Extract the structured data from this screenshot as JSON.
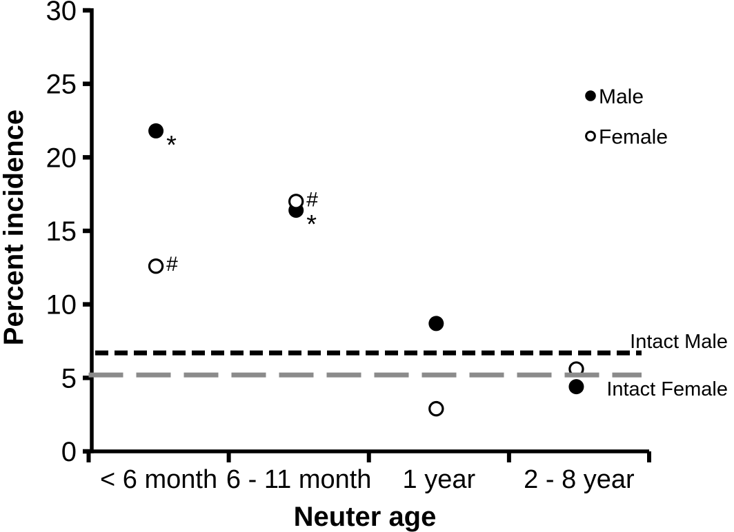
{
  "figure": {
    "background": "#ffffff"
  },
  "colors": {
    "point_fill": "#000000",
    "open_point_fill": "#ffffff",
    "point_outline": "#000000",
    "axis": "#000000",
    "intact_male_line": "#000000",
    "intact_female_line": "#8b8b8b",
    "text": "#000000"
  },
  "chart_data": {
    "type": "scatter",
    "title": "",
    "xlabel": "Neuter age",
    "ylabel": "Percent incidence",
    "categories": [
      "< 6 month",
      "6 - 11 month",
      "1 year",
      "2 - 8 year"
    ],
    "ylim": [
      0,
      30
    ],
    "y_ticks": [
      0,
      5,
      10,
      15,
      20,
      25,
      30
    ],
    "grid": false,
    "legend_position": "top-right",
    "series": [
      {
        "name": "Male",
        "marker": "filled-circle",
        "color": "#000000",
        "values": [
          21.8,
          16.4,
          8.7,
          4.4
        ],
        "annotations": [
          "*",
          "*",
          "",
          ""
        ]
      },
      {
        "name": "Female",
        "marker": "open-circle",
        "color": "#000000",
        "values": [
          12.6,
          17.0,
          2.9,
          5.6
        ],
        "annotations": [
          "#",
          "#",
          "",
          ""
        ]
      }
    ],
    "reference_lines": [
      {
        "label": "Intact Male",
        "value": 6.7,
        "color": "#000000",
        "dash": "short"
      },
      {
        "label": "Intact Female",
        "value": 5.2,
        "color": "#8b8b8b",
        "dash": "long"
      }
    ]
  }
}
